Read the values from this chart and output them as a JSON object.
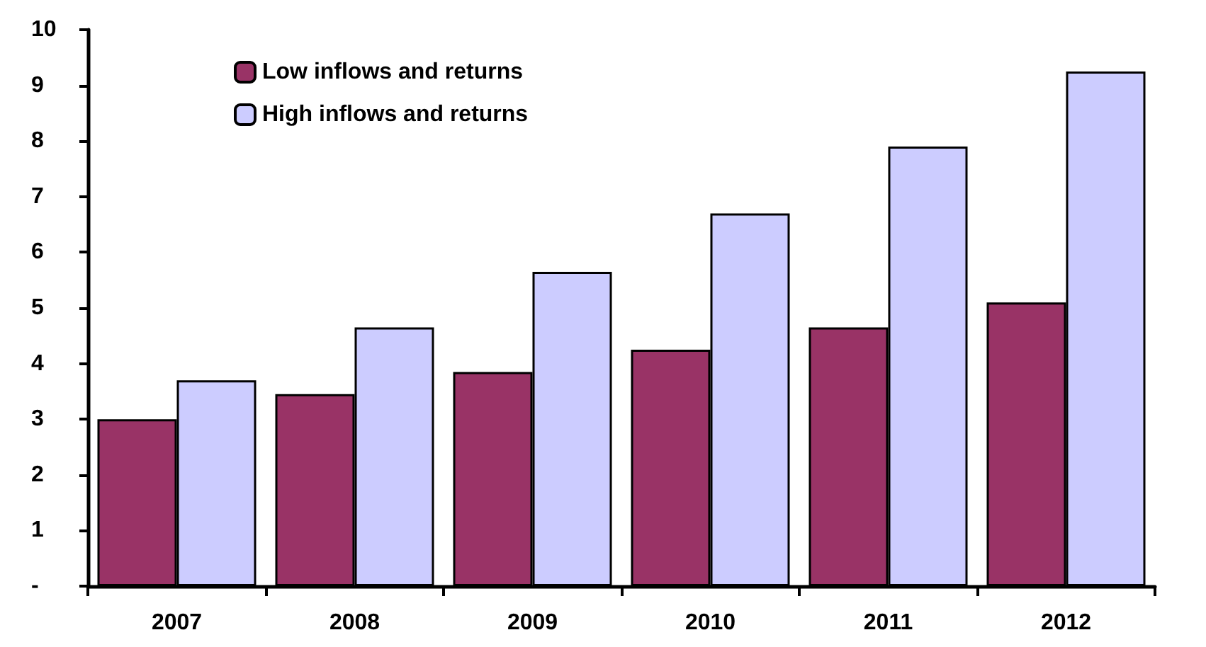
{
  "chart_data": {
    "type": "bar",
    "categories": [
      "2007",
      "2008",
      "2009",
      "2010",
      "2011",
      "2012"
    ],
    "series": [
      {
        "name": "Low inflows and returns",
        "color": "#993366",
        "values": [
          3.0,
          3.45,
          3.85,
          4.25,
          4.65,
          5.1
        ]
      },
      {
        "name": "High inflows and returns",
        "color": "#ccccff",
        "values": [
          3.7,
          4.65,
          5.65,
          6.7,
          7.9,
          9.25
        ]
      }
    ],
    "ylim": [
      0,
      10
    ],
    "yticks": [
      {
        "value": 0,
        "label": "-"
      },
      1,
      2,
      3,
      4,
      5,
      6,
      7,
      8,
      9,
      10
    ],
    "grid": false,
    "legend": "top left"
  }
}
